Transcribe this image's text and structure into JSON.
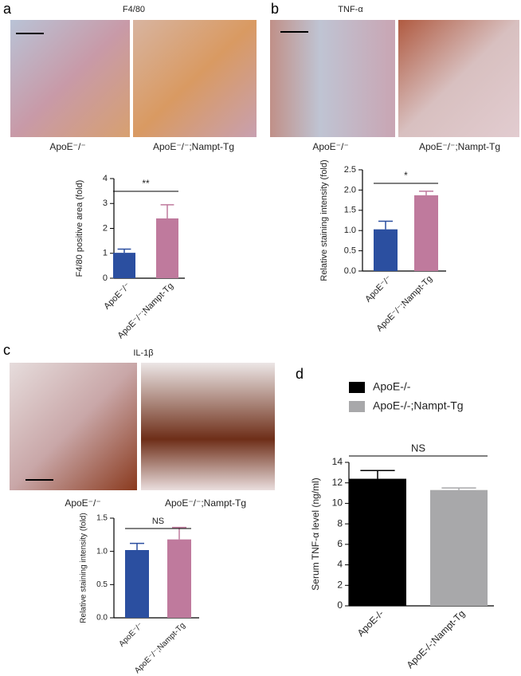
{
  "panels": [
    {
      "label": "a",
      "image_title": "F4/80",
      "image_captions": [
        "ApoE⁻/⁻",
        "ApoE⁻/⁻;Nampt-Tg"
      ]
    },
    {
      "label": "b",
      "image_title": "TNF-α",
      "image_captions": [
        "ApoE⁻/⁻",
        "ApoE⁻/⁻;Nampt-Tg"
      ]
    },
    {
      "label": "c",
      "image_title": "IL-1β",
      "image_captions": [
        "ApoE⁻/⁻",
        "ApoE⁻/⁻;Nampt-Tg"
      ]
    },
    {
      "label": "d"
    }
  ],
  "chart_data": [
    {
      "type": "bar",
      "ylabel": "F4/80 positive area (fold)",
      "categories": [
        "ApoE⁻/⁻",
        "ApoE⁻/⁻;Nampt-Tg"
      ],
      "values": [
        1.02,
        2.4
      ],
      "errors": [
        0.15,
        0.55
      ],
      "colors": [
        "#2b4fa0",
        "#bf7a9d"
      ],
      "annotation": "**",
      "ylim": [
        0,
        4
      ],
      "yticks": [
        0,
        1,
        2,
        3,
        4
      ]
    },
    {
      "type": "bar",
      "ylabel": "Relative staining intensity (fold)",
      "categories": [
        "ApoE⁻/⁻",
        "ApoE⁻/⁻;Nampt-Tg"
      ],
      "values": [
        1.03,
        1.87
      ],
      "errors": [
        0.2,
        0.1
      ],
      "colors": [
        "#2b4fa0",
        "#bf7a9d"
      ],
      "annotation": "*",
      "ylim": [
        0,
        2.5
      ],
      "yticks": [
        {
          "value": 0,
          "label": "0.0"
        },
        0.5,
        {
          "value": 1,
          "label": "1.0"
        },
        1.5,
        {
          "value": 2,
          "label": "2.0"
        },
        2.5
      ]
    },
    {
      "type": "bar",
      "ylabel": "Relative staining intensity (fold)",
      "categories": [
        "ApoE⁻/⁻",
        "ApoE⁻/⁻;Nampt-Tg"
      ],
      "values": [
        1.02,
        1.18
      ],
      "errors": [
        0.1,
        0.18
      ],
      "colors": [
        "#2b4fa0",
        "#bf7a9d"
      ],
      "annotation": "NS",
      "ylim": [
        0,
        1.5
      ],
      "yticks": [
        {
          "value": 0,
          "label": "0.0"
        },
        0.5,
        {
          "value": 1,
          "label": "1.0"
        },
        1.5
      ]
    },
    {
      "type": "bar",
      "ylabel": "Serum TNF-α level (ng/ml)",
      "categories": [
        "ApoE-/-",
        "ApoE-/-;Nampt-Tg"
      ],
      "values": [
        12.4,
        11.3
      ],
      "errors": [
        0.8,
        0.2
      ],
      "colors": [
        "#000000",
        "#a8a8aa"
      ],
      "annotation": "NS",
      "legend": true,
      "ylim": [
        0,
        14
      ],
      "yticks": [
        0,
        2,
        4,
        6,
        8,
        10,
        12,
        14
      ]
    }
  ]
}
